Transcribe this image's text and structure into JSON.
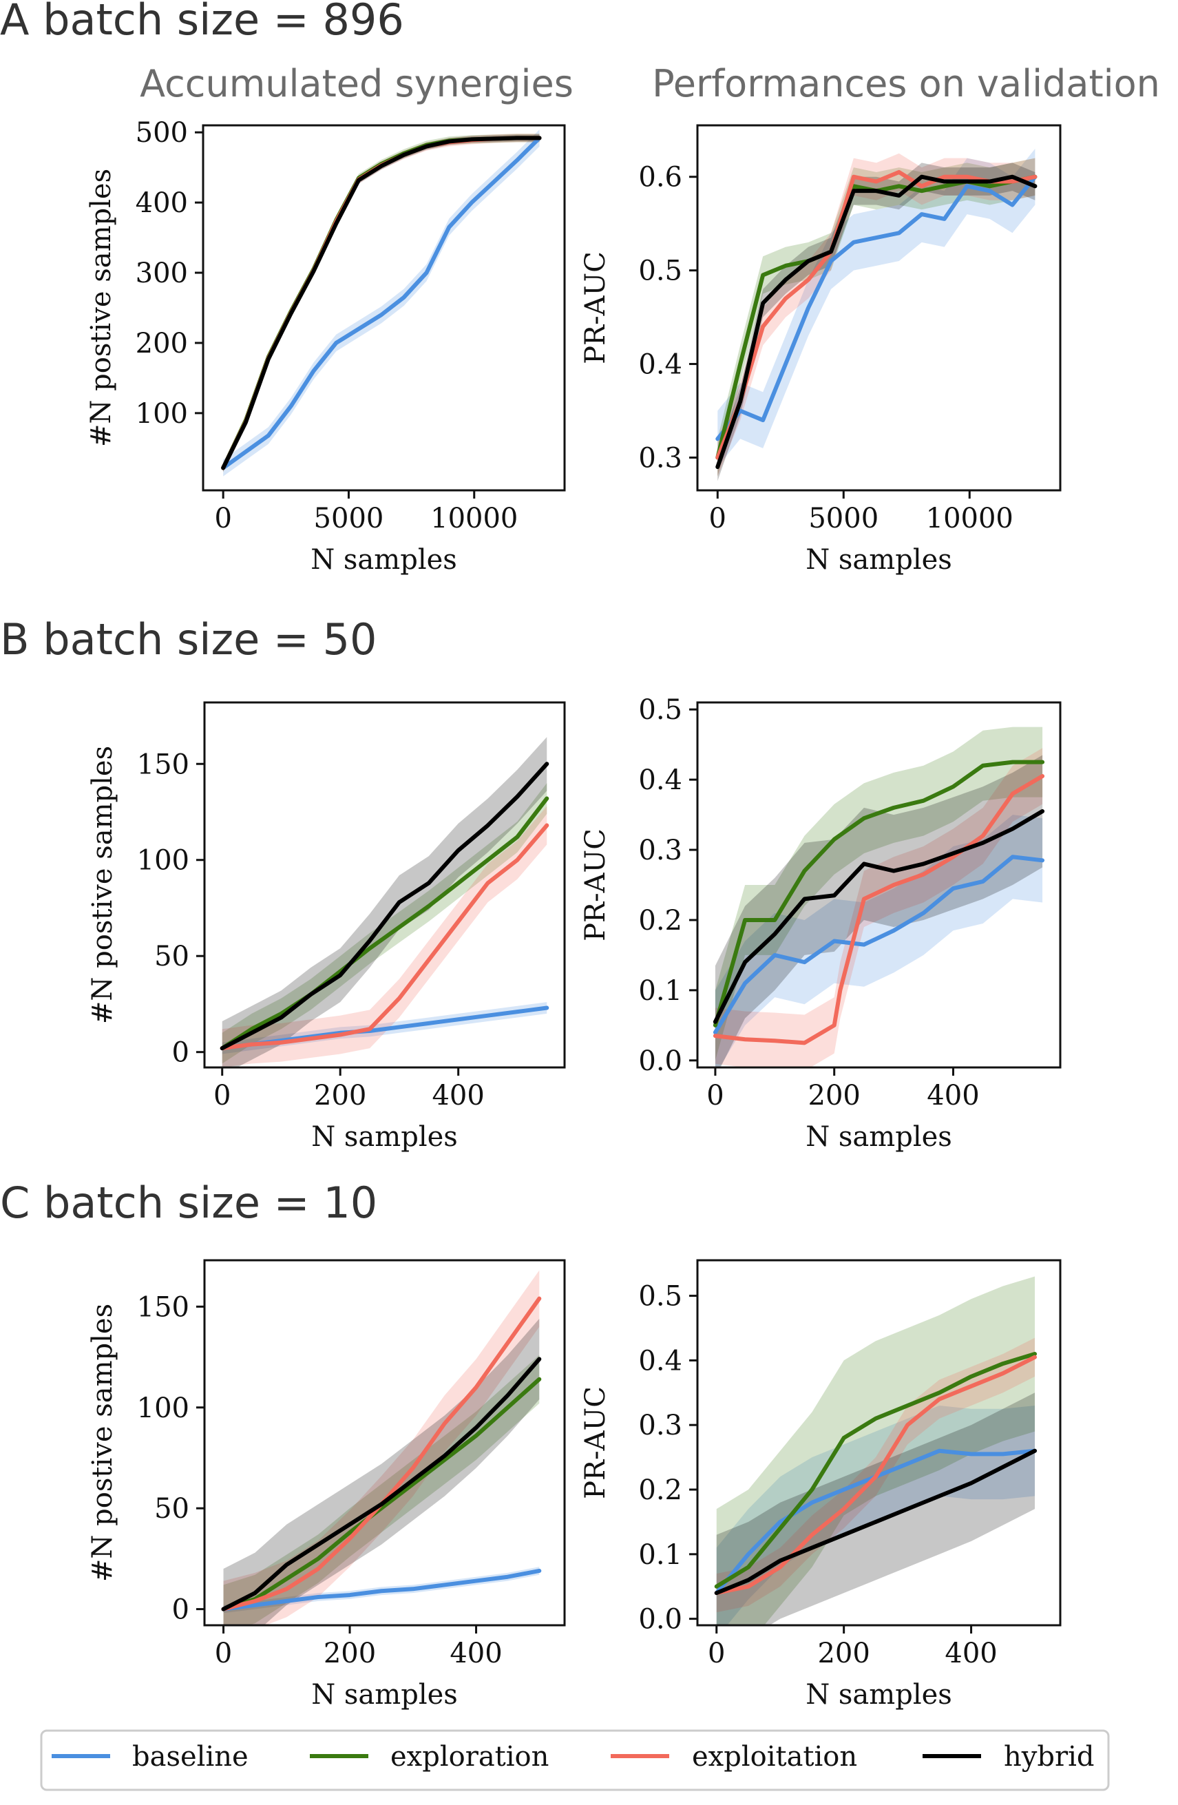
{
  "figure": {
    "column_titles": [
      "Accumulated synergies",
      "Performances on validation"
    ],
    "legend": [
      {
        "label": "baseline",
        "color": "#4a8fe0"
      },
      {
        "label": "exploration",
        "color": "#3a7a10"
      },
      {
        "label": "exploitation",
        "color": "#f26a5b"
      },
      {
        "label": "hybrid",
        "color": "#000000"
      }
    ]
  },
  "chart_data": [
    {
      "id": "A-left",
      "type": "line",
      "row_title": "A batch size = 896",
      "title": "Accumulated synergies",
      "xlabel": "N samples",
      "ylabel": "#N postive samples",
      "xlim": [
        -800,
        13600
      ],
      "ylim": [
        -10,
        510
      ],
      "xticks": [
        0,
        5000,
        10000
      ],
      "yticks": [
        100,
        200,
        300,
        400,
        500
      ],
      "series": [
        {
          "name": "baseline",
          "x": [
            0,
            900,
            1800,
            2700,
            3600,
            4500,
            5400,
            6300,
            7200,
            8100,
            9000,
            9900,
            10800,
            11700,
            12600
          ],
          "y": [
            22,
            45,
            68,
            110,
            160,
            200,
            220,
            240,
            265,
            300,
            365,
            400,
            430,
            460,
            492
          ],
          "spread": 12
        },
        {
          "name": "exploration",
          "x": [
            0,
            900,
            1800,
            2700,
            3600,
            4500,
            5400,
            6300,
            7200,
            8100,
            9000,
            9900,
            10800,
            11700,
            12600
          ],
          "y": [
            22,
            90,
            180,
            245,
            305,
            375,
            435,
            455,
            470,
            482,
            488,
            490,
            491,
            492,
            492
          ],
          "spread": 6
        },
        {
          "name": "exploitation",
          "x": [
            0,
            900,
            1800,
            2700,
            3600,
            4500,
            5400,
            6300,
            7200,
            8100,
            9000,
            9900,
            10800,
            11700,
            12600
          ],
          "y": [
            22,
            88,
            178,
            243,
            303,
            373,
            433,
            453,
            468,
            480,
            486,
            489,
            491,
            492,
            492
          ],
          "spread": 6
        },
        {
          "name": "hybrid",
          "x": [
            0,
            900,
            1800,
            2700,
            3600,
            4500,
            5400,
            6300,
            7200,
            8100,
            9000,
            9900,
            10800,
            11700,
            12600
          ],
          "y": [
            22,
            87,
            177,
            242,
            302,
            370,
            432,
            452,
            468,
            480,
            487,
            490,
            491,
            492,
            492
          ],
          "spread": 5
        }
      ]
    },
    {
      "id": "A-right",
      "type": "line",
      "title": "Performances on validation",
      "xlabel": "N samples",
      "ylabel": "PR-AUC",
      "xlim": [
        -800,
        13600
      ],
      "ylim": [
        0.265,
        0.655
      ],
      "xticks": [
        0,
        5000,
        10000
      ],
      "yticks": [
        0.3,
        0.4,
        0.5,
        0.6
      ],
      "series": [
        {
          "name": "baseline",
          "x": [
            0,
            900,
            1800,
            2700,
            3600,
            4500,
            5400,
            6300,
            7200,
            8100,
            9000,
            9900,
            10800,
            11700,
            12600
          ],
          "y": [
            0.32,
            0.35,
            0.34,
            0.4,
            0.46,
            0.51,
            0.53,
            0.535,
            0.54,
            0.56,
            0.555,
            0.59,
            0.585,
            0.57,
            0.6
          ],
          "spread": 0.03
        },
        {
          "name": "exploration",
          "x": [
            0,
            900,
            1800,
            2700,
            3600,
            4500,
            5400,
            6300,
            7200,
            8100,
            9000,
            9900,
            10800,
            11700,
            12600
          ],
          "y": [
            0.3,
            0.4,
            0.495,
            0.505,
            0.51,
            0.52,
            0.59,
            0.585,
            0.59,
            0.585,
            0.59,
            0.595,
            0.59,
            0.595,
            0.6
          ],
          "spread": 0.02
        },
        {
          "name": "exploitation",
          "x": [
            0,
            900,
            1800,
            2700,
            3600,
            4500,
            5400,
            6300,
            7200,
            8100,
            9000,
            9900,
            10800,
            11700,
            12600
          ],
          "y": [
            0.3,
            0.36,
            0.44,
            0.47,
            0.49,
            0.52,
            0.6,
            0.595,
            0.605,
            0.59,
            0.6,
            0.6,
            0.595,
            0.595,
            0.6
          ],
          "spread": 0.02
        },
        {
          "name": "hybrid",
          "x": [
            0,
            900,
            1800,
            2700,
            3600,
            4500,
            5400,
            6300,
            7200,
            8100,
            9000,
            9900,
            10800,
            11700,
            12600
          ],
          "y": [
            0.29,
            0.36,
            0.465,
            0.49,
            0.51,
            0.52,
            0.585,
            0.585,
            0.58,
            0.6,
            0.595,
            0.595,
            0.595,
            0.6,
            0.59
          ],
          "spread": 0.015
        }
      ]
    },
    {
      "id": "B-left",
      "type": "line",
      "row_title": "B batch size = 50",
      "xlabel": "N samples",
      "ylabel": "#N postive samples",
      "xlim": [
        -30,
        580
      ],
      "ylim": [
        -8,
        182
      ],
      "xticks": [
        0,
        200,
        400
      ],
      "yticks": [
        0,
        50,
        100,
        150
      ],
      "series": [
        {
          "name": "baseline",
          "x": [
            0,
            50,
            100,
            150,
            200,
            250,
            300,
            350,
            400,
            450,
            500,
            550
          ],
          "y": [
            2,
            4,
            6,
            8,
            10,
            11,
            13,
            15,
            17,
            19,
            21,
            23
          ],
          "spread": 3
        },
        {
          "name": "exploration",
          "x": [
            0,
            50,
            100,
            150,
            200,
            250,
            300,
            350,
            400,
            450,
            500,
            550
          ],
          "y": [
            2,
            12,
            20,
            30,
            42,
            54,
            65,
            76,
            88,
            100,
            112,
            132
          ],
          "spread": 8
        },
        {
          "name": "exploitation",
          "x": [
            0,
            50,
            100,
            150,
            200,
            250,
            300,
            350,
            400,
            450,
            500,
            550
          ],
          "y": [
            2,
            4,
            5,
            7,
            9,
            12,
            28,
            48,
            68,
            88,
            100,
            118
          ],
          "spread": 10
        },
        {
          "name": "hybrid",
          "x": [
            0,
            50,
            100,
            150,
            200,
            250,
            300,
            350,
            400,
            450,
            500,
            550
          ],
          "y": [
            2,
            10,
            18,
            30,
            40,
            58,
            78,
            88,
            105,
            118,
            133,
            150
          ],
          "spread": 14
        }
      ]
    },
    {
      "id": "B-right",
      "type": "line",
      "xlabel": "N samples",
      "ylabel": "PR-AUC",
      "xlim": [
        -30,
        580
      ],
      "ylim": [
        -0.01,
        0.51
      ],
      "xticks": [
        0,
        200,
        400
      ],
      "yticks": [
        0.0,
        0.1,
        0.2,
        0.3,
        0.4,
        0.5
      ],
      "series": [
        {
          "name": "baseline",
          "x": [
            0,
            50,
            100,
            150,
            200,
            250,
            300,
            350,
            400,
            450,
            500,
            550
          ],
          "y": [
            0.04,
            0.11,
            0.15,
            0.14,
            0.17,
            0.165,
            0.185,
            0.21,
            0.245,
            0.255,
            0.29,
            0.285
          ],
          "spread": 0.06
        },
        {
          "name": "exploration",
          "x": [
            0,
            50,
            100,
            150,
            200,
            250,
            300,
            350,
            400,
            450,
            500,
            550
          ],
          "y": [
            0.05,
            0.2,
            0.2,
            0.27,
            0.315,
            0.345,
            0.36,
            0.37,
            0.39,
            0.42,
            0.425,
            0.425
          ],
          "spread": 0.05
        },
        {
          "name": "exploitation",
          "x": [
            0,
            50,
            100,
            150,
            200,
            210,
            250,
            300,
            350,
            400,
            450,
            500,
            550
          ],
          "y": [
            0.035,
            0.03,
            0.028,
            0.025,
            0.05,
            0.1,
            0.23,
            0.25,
            0.265,
            0.29,
            0.32,
            0.38,
            0.405
          ],
          "spread": 0.04
        },
        {
          "name": "hybrid",
          "x": [
            0,
            50,
            100,
            150,
            200,
            250,
            300,
            350,
            400,
            450,
            500,
            550
          ],
          "y": [
            0.055,
            0.14,
            0.18,
            0.23,
            0.235,
            0.28,
            0.27,
            0.28,
            0.295,
            0.31,
            0.33,
            0.355
          ],
          "spread": 0.08
        }
      ]
    },
    {
      "id": "C-left",
      "type": "line",
      "row_title": "C batch size = 10",
      "xlabel": "N samples",
      "ylabel": "#N postive samples",
      "xlim": [
        -30,
        540
      ],
      "ylim": [
        -8,
        173
      ],
      "xticks": [
        0,
        200,
        400
      ],
      "yticks": [
        0,
        50,
        100,
        150
      ],
      "series": [
        {
          "name": "baseline",
          "x": [
            0,
            50,
            100,
            150,
            200,
            250,
            300,
            350,
            400,
            450,
            500
          ],
          "y": [
            0,
            2,
            4,
            6,
            7,
            9,
            10,
            12,
            14,
            16,
            19
          ],
          "spread": 2
        },
        {
          "name": "exploration",
          "x": [
            0,
            50,
            100,
            150,
            200,
            250,
            300,
            350,
            400,
            450,
            500
          ],
          "y": [
            0,
            5,
            15,
            25,
            38,
            50,
            62,
            74,
            86,
            100,
            114
          ],
          "spread": 12
        },
        {
          "name": "exploitation",
          "x": [
            0,
            50,
            100,
            150,
            200,
            250,
            300,
            350,
            400,
            450,
            500
          ],
          "y": [
            0,
            4,
            10,
            20,
            35,
            52,
            70,
            92,
            110,
            132,
            154
          ],
          "spread": 14
        },
        {
          "name": "hybrid",
          "x": [
            0,
            50,
            100,
            150,
            200,
            250,
            300,
            350,
            400,
            450,
            500
          ],
          "y": [
            0,
            8,
            22,
            32,
            42,
            52,
            64,
            76,
            90,
            106,
            124
          ],
          "spread": 20
        }
      ]
    },
    {
      "id": "C-right",
      "type": "line",
      "xlabel": "N samples",
      "ylabel": "PR-AUC",
      "xlim": [
        -30,
        540
      ],
      "ylim": [
        -0.01,
        0.555
      ],
      "xticks": [
        0,
        200,
        400
      ],
      "yticks": [
        0.0,
        0.1,
        0.2,
        0.3,
        0.4,
        0.5
      ],
      "series": [
        {
          "name": "baseline",
          "x": [
            0,
            50,
            100,
            150,
            200,
            250,
            300,
            350,
            400,
            450,
            500
          ],
          "y": [
            0.04,
            0.1,
            0.15,
            0.18,
            0.2,
            0.22,
            0.24,
            0.26,
            0.255,
            0.255,
            0.26
          ],
          "spread": 0.07
        },
        {
          "name": "exploration",
          "x": [
            0,
            50,
            100,
            150,
            200,
            250,
            300,
            350,
            400,
            450,
            500
          ],
          "y": [
            0.05,
            0.08,
            0.14,
            0.2,
            0.28,
            0.31,
            0.33,
            0.35,
            0.375,
            0.395,
            0.41
          ],
          "spread": 0.12
        },
        {
          "name": "exploitation",
          "x": [
            0,
            50,
            100,
            150,
            200,
            250,
            300,
            350,
            400,
            450,
            500
          ],
          "y": [
            0.04,
            0.05,
            0.08,
            0.13,
            0.17,
            0.22,
            0.3,
            0.34,
            0.36,
            0.38,
            0.405
          ],
          "spread": 0.03
        },
        {
          "name": "hybrid",
          "x": [
            0,
            50,
            100,
            150,
            200,
            250,
            300,
            350,
            400,
            450,
            500
          ],
          "y": [
            0.04,
            0.06,
            0.09,
            0.11,
            0.13,
            0.15,
            0.17,
            0.19,
            0.21,
            0.235,
            0.26
          ],
          "spread": 0.09
        }
      ]
    }
  ]
}
